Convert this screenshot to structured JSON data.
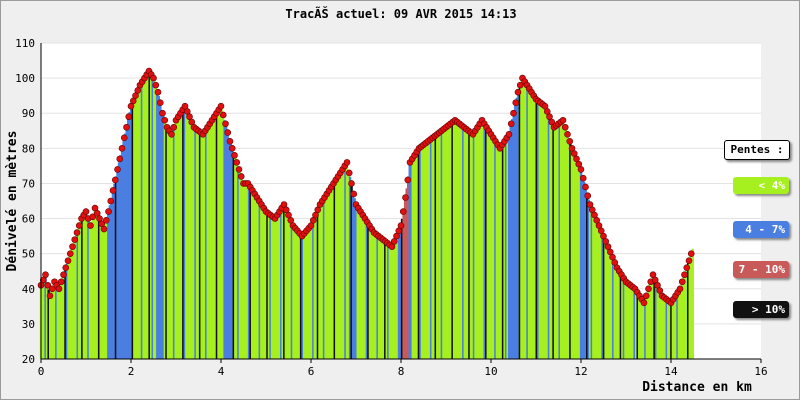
{
  "chart_data": {
    "type": "area",
    "title": "TracÃŠ actuel: 09 AVR 2015 14:13",
    "xlabel": "Distance en km",
    "ylabel": "Dénivelé en mètres",
    "xlim": [
      0,
      16
    ],
    "ylim": [
      20,
      110
    ],
    "xticks": [
      "0",
      "2",
      "4",
      "6",
      "8",
      "10",
      "12",
      "14",
      "16"
    ],
    "yticks": [
      "20",
      "30",
      "40",
      "50",
      "60",
      "70",
      "80",
      "90",
      "100",
      "110"
    ],
    "grid": true,
    "legend_position": "right",
    "legend_title": "Pentes :",
    "legend": [
      {
        "label": "< 4%",
        "color": "#a6f020",
        "text_color": "#ffffff"
      },
      {
        "label": "4 - 7%",
        "color": "#4a7ee0",
        "text_color": "#ffffff"
      },
      {
        "label": "7 - 10%",
        "color": "#c85a5a",
        "text_color": "#ffffff"
      },
      {
        "label": "> 10%",
        "color": "#111111",
        "text_color": "#ffffff"
      }
    ],
    "series": [
      {
        "x": [
          0.0,
          0.1,
          0.2,
          0.3,
          0.4,
          0.5,
          0.6,
          0.7,
          0.8,
          0.9,
          1.0,
          1.1,
          1.2,
          1.3,
          1.4,
          1.5,
          1.6,
          1.7,
          1.8,
          1.9,
          2.0,
          2.1,
          2.2,
          2.3,
          2.4,
          2.5,
          2.6,
          2.7,
          2.8,
          2.9,
          3.0,
          3.2,
          3.4,
          3.6,
          3.8,
          4.0,
          4.2,
          4.4,
          4.5,
          4.6,
          4.8,
          5.0,
          5.2,
          5.4,
          5.6,
          5.8,
          6.0,
          6.2,
          6.4,
          6.6,
          6.8,
          7.0,
          7.2,
          7.4,
          7.6,
          7.8,
          8.0,
          8.1,
          8.2,
          8.4,
          8.6,
          8.8,
          9.0,
          9.2,
          9.4,
          9.6,
          9.8,
          10.0,
          10.2,
          10.4,
          10.6,
          10.7,
          10.8,
          11.0,
          11.2,
          11.4,
          11.6,
          11.8,
          12.0,
          12.2,
          12.4,
          12.6,
          12.8,
          13.0,
          13.2,
          13.4,
          13.6,
          13.8,
          14.0,
          14.2,
          14.4,
          14.5
        ],
        "y": [
          41,
          44,
          38,
          42,
          40,
          44,
          48,
          52,
          56,
          60,
          62,
          58,
          63,
          60,
          57,
          62,
          68,
          74,
          80,
          86,
          92,
          95,
          98,
          100,
          102,
          100,
          96,
          90,
          86,
          84,
          88,
          92,
          86,
          84,
          88,
          92,
          82,
          74,
          70,
          70,
          66,
          62,
          60,
          64,
          58,
          55,
          58,
          64,
          68,
          72,
          76,
          64,
          60,
          56,
          54,
          52,
          58,
          66,
          76,
          80,
          82,
          84,
          86,
          88,
          86,
          84,
          88,
          84,
          80,
          84,
          96,
          100,
          98,
          94,
          92,
          86,
          88,
          80,
          74,
          64,
          58,
          52,
          46,
          42,
          40,
          36,
          44,
          38,
          36,
          40,
          48,
          52
        ]
      }
    ]
  }
}
